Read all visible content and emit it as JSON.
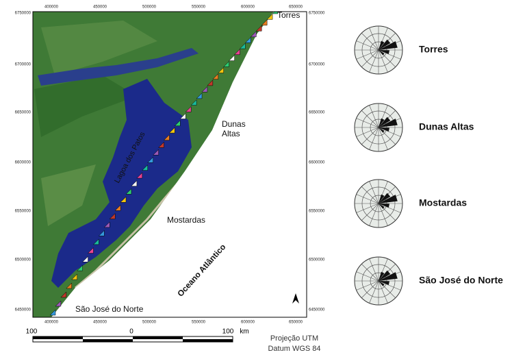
{
  "map": {
    "x_labels_top": [
      "400000",
      "450000",
      "500000",
      "550000",
      "600000",
      "650000"
    ],
    "x_labels_bottom": [
      "400000",
      "450000",
      "500000",
      "550000",
      "600000",
      "650000"
    ],
    "y_labels_left": [
      "6750000",
      "6700000",
      "6650000",
      "6600000",
      "6550000",
      "6500000",
      "6450000"
    ],
    "y_labels_right": [
      "6750000",
      "6700000",
      "6650000",
      "6600000",
      "6550000",
      "6500000",
      "6450000"
    ],
    "places": [
      "Torres",
      "Dunas",
      "Altas",
      "Mostardas",
      "São José do Norte"
    ],
    "lagoon": "Lagoa dos Patos",
    "ocean": "Oceano Atlântico",
    "scale": {
      "left": "100",
      "middle": "0",
      "right": "100",
      "unit": "km"
    },
    "projection": "Projeção UTM",
    "datum": "Datum WGS 84"
  },
  "roses": {
    "labels": [
      "Torres",
      "Dunas Altas",
      "Mostardas",
      "São José do Norte"
    ]
  }
}
